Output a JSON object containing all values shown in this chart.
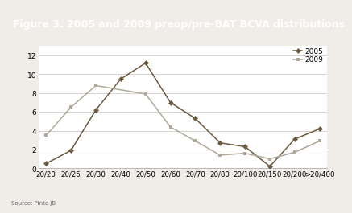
{
  "title": "Figure 3. 2005 and 2009 preop/pre-BAT BCVA distributions",
  "categories": [
    "20/20",
    "20/25",
    "20/30",
    "20/40",
    "20/50",
    "20/60",
    "20/70",
    "20/80",
    "20/100",
    "20/150",
    "20/200",
    ">20/400"
  ],
  "series_2005": [
    0.5,
    1.9,
    6.2,
    9.5,
    11.2,
    7.0,
    5.3,
    2.7,
    2.3,
    0.2,
    3.1,
    4.2
  ],
  "series_2009": [
    3.5,
    6.5,
    8.8,
    null,
    7.9,
    4.4,
    2.9,
    1.4,
    1.6,
    1.0,
    1.7,
    2.9
  ],
  "color_2005": "#6b5a3e",
  "color_2009": "#b0a898",
  "ylim": [
    0,
    13
  ],
  "yticks": [
    0,
    2,
    4,
    6,
    8,
    10,
    12
  ],
  "title_bg": "#8a7f72",
  "title_fg": "#ffffff",
  "plot_bg": "#ffffff",
  "fig_bg": "#f0ede8",
  "source": "Source: Pinto JB",
  "legend_2005": "2005",
  "legend_2009": "2009",
  "title_fontsize": 9.0,
  "tick_fontsize": 6.2,
  "ytick_fontsize": 6.5
}
